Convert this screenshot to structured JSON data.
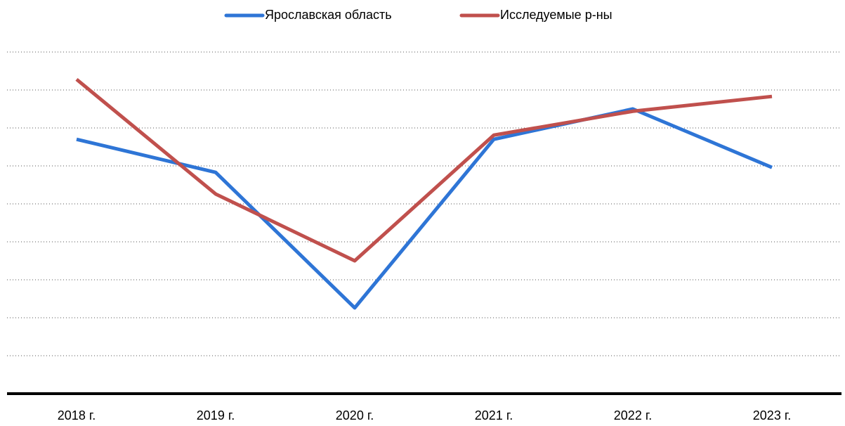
{
  "chart_data": {
    "type": "line",
    "categories": [
      "2018 г.",
      "2019 г.",
      "2020 г.",
      "2021 г.",
      "2022 г.",
      "2023 г."
    ],
    "series": [
      {
        "name": "Ярославская область",
        "color": "#2e75d6",
        "values": [
          6.7,
          5.83,
          2.26,
          6.7,
          7.5,
          5.96
        ]
      },
      {
        "name": "Исследуемые р-ны",
        "color": "#c0504d",
        "values": [
          8.28,
          5.26,
          3.5,
          6.81,
          7.44,
          7.83
        ]
      }
    ],
    "ylim": [
      0,
      9
    ],
    "yticks": [
      0,
      1,
      2,
      3,
      4,
      5,
      6,
      7,
      8,
      9
    ],
    "grid": true,
    "legend": "top"
  }
}
